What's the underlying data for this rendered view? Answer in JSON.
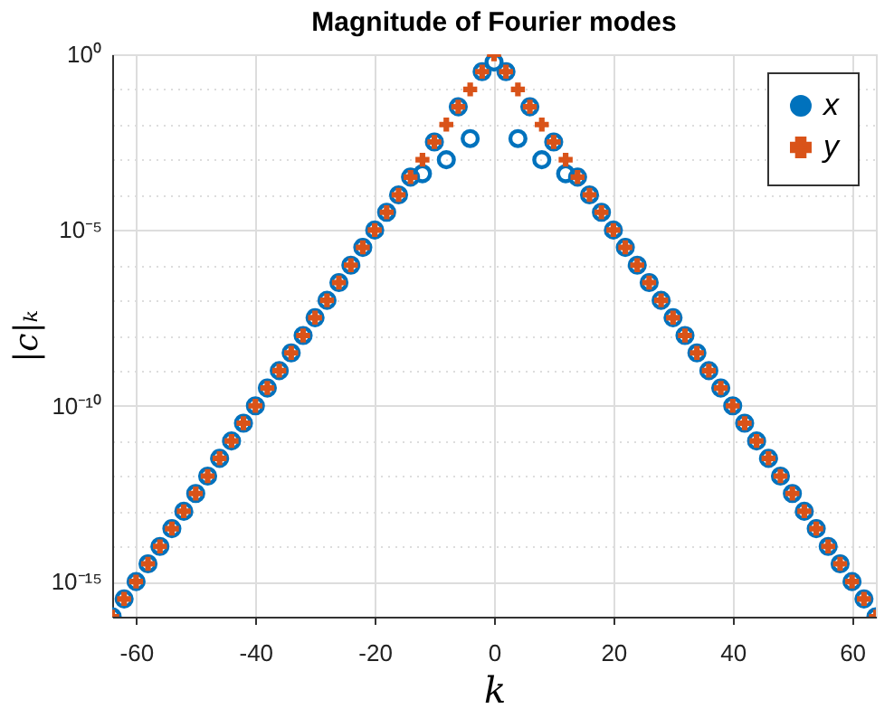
{
  "chart_data": {
    "type": "scatter",
    "title": "Magnitude of Fourier modes",
    "xlabel": "k",
    "ylabel": "|c|ₖ",
    "x": [
      -64,
      -62,
      -60,
      -58,
      -56,
      -54,
      -52,
      -50,
      -48,
      -46,
      -44,
      -42,
      -40,
      -38,
      -36,
      -34,
      -32,
      -30,
      -28,
      -26,
      -24,
      -22,
      -20,
      -18,
      -16,
      -14,
      -12,
      -10,
      -8,
      -6,
      -4,
      -2,
      0,
      2,
      4,
      6,
      8,
      10,
      12,
      14,
      16,
      18,
      20,
      22,
      24,
      26,
      28,
      30,
      32,
      34,
      36,
      38,
      40,
      42,
      44,
      46,
      48,
      50,
      52,
      54,
      56,
      58,
      60,
      62,
      64
    ],
    "series": [
      {
        "name": "x",
        "color": "#0072bd",
        "marker": "circle",
        "values": [
          1e-16,
          3.2e-16,
          1e-15,
          3.2e-15,
          1e-14,
          3.2e-14,
          1e-13,
          3.2e-13,
          1e-12,
          3.2e-12,
          1e-11,
          3.2e-11,
          1e-10,
          3.2e-10,
          1e-09,
          3.2e-09,
          1e-08,
          3.2e-08,
          1e-07,
          3.2e-07,
          1e-06,
          3.2e-06,
          1e-05,
          3.2e-05,
          0.0001,
          0.00032,
          0.0004,
          0.0032,
          0.001,
          0.032,
          0.004,
          0.32,
          0.6,
          0.32,
          0.004,
          0.032,
          0.001,
          0.0032,
          0.0004,
          0.00032,
          0.0001,
          3.2e-05,
          1e-05,
          3.2e-06,
          1e-06,
          3.2e-07,
          1e-07,
          3.2e-08,
          1e-08,
          3.2e-09,
          1e-09,
          3.2e-10,
          1e-10,
          3.2e-11,
          1e-11,
          3.2e-12,
          1e-12,
          3.2e-13,
          1e-13,
          3.2e-14,
          1e-14,
          3.2e-15,
          1e-15,
          3.2e-16,
          1e-16
        ]
      },
      {
        "name": "y",
        "color": "#d95319",
        "marker": "cross",
        "values": [
          1e-16,
          3.2e-16,
          1e-15,
          3.2e-15,
          1e-14,
          3.2e-14,
          1e-13,
          3.2e-13,
          1e-12,
          3.2e-12,
          1e-11,
          3.2e-11,
          1e-10,
          3.2e-10,
          1e-09,
          3.2e-09,
          1e-08,
          3.2e-08,
          1e-07,
          3.2e-07,
          1e-06,
          3.2e-06,
          1e-05,
          3.2e-05,
          0.0001,
          0.00032,
          0.001,
          0.0032,
          0.01,
          0.032,
          0.1,
          0.32,
          1,
          0.32,
          0.1,
          0.032,
          0.01,
          0.0032,
          0.001,
          0.00032,
          0.0001,
          3.2e-05,
          1e-05,
          3.2e-06,
          1e-06,
          3.2e-07,
          1e-07,
          3.2e-08,
          1e-08,
          3.2e-09,
          1e-09,
          3.2e-10,
          1e-10,
          3.2e-11,
          1e-11,
          3.2e-12,
          1e-12,
          3.2e-13,
          1e-13,
          3.2e-14,
          1e-14,
          3.2e-15,
          1e-15,
          3.2e-16,
          1e-16
        ]
      }
    ],
    "xlim": [
      -64,
      64
    ],
    "xticks": [
      -60,
      -40,
      -20,
      0,
      20,
      40,
      60
    ],
    "ylim": [
      1e-16,
      1
    ],
    "log": "y",
    "yticks": [
      {
        "value": 1,
        "label": "10⁰"
      },
      {
        "value": 0.1,
        "label": null
      },
      {
        "value": 0.01,
        "label": null
      },
      {
        "value": 0.001,
        "label": null
      },
      {
        "value": 0.0001,
        "label": null
      },
      {
        "value": 1e-05,
        "label": "10⁻⁵"
      },
      {
        "value": 1e-06,
        "label": null
      },
      {
        "value": 1e-07,
        "label": null
      },
      {
        "value": 1e-08,
        "label": null
      },
      {
        "value": 1e-09,
        "label": null
      },
      {
        "value": 1e-10,
        "label": "10⁻¹⁰"
      },
      {
        "value": 1e-11,
        "label": null
      },
      {
        "value": 1e-12,
        "label": null
      },
      {
        "value": 1e-13,
        "label": null
      },
      {
        "value": 1e-14,
        "label": null
      },
      {
        "value": 1e-15,
        "label": "10⁻¹⁵"
      },
      {
        "value": 1e-16,
        "label": null
      }
    ],
    "grid": true,
    "legend": "top right"
  }
}
